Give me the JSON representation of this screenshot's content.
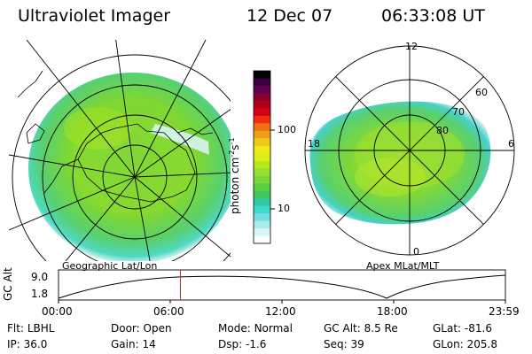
{
  "header": {
    "title": "Ultraviolet Imager",
    "date": "12 Dec 07",
    "time": "06:33:08 UT"
  },
  "left_panel": {
    "caption": "Geographic Lat/Lon"
  },
  "right_panel": {
    "caption": "Apex  MLat/MLT",
    "mlt_labels": [
      "12",
      "18",
      "6",
      "0"
    ],
    "lat_labels": [
      "60",
      "70",
      "80"
    ]
  },
  "colorbar": {
    "unit_label": "photon cm",
    "unit_sup1": "-2",
    "unit_mid": "s",
    "unit_sup2": "-1",
    "tick_100": "100",
    "tick_10": "10",
    "colors": [
      "#000000",
      "#3a0040",
      "#600050",
      "#8a0030",
      "#b00018",
      "#d80018",
      "#f03010",
      "#f07018",
      "#f0a018",
      "#f0c818",
      "#f0e818",
      "#d8f018",
      "#b8e818",
      "#98e030",
      "#78d838",
      "#58d040",
      "#40c860",
      "#30c8a0",
      "#40d8c8",
      "#70e0e0",
      "#a8ecec",
      "#d8f4f4",
      "#ffffff"
    ]
  },
  "altitude_plot": {
    "ylabel": "GC Alt",
    "y_ticks": [
      "9.0",
      "1.8"
    ],
    "x_ticks": [
      "00:00",
      "06:00",
      "12:00",
      "18:00",
      "23:59"
    ],
    "current_time_hours": 6.55
  },
  "status": {
    "row1": [
      {
        "label": "Flt:",
        "value": "LBHL"
      },
      {
        "label": "Door:",
        "value": "Open"
      },
      {
        "label": "Mode:",
        "value": "Normal"
      },
      {
        "label": "GC Alt:",
        "value": "8.5 Re"
      },
      {
        "label": "GLat:",
        "value": "-81.6"
      }
    ],
    "row2": [
      {
        "label": "IP:",
        "value": "36.0"
      },
      {
        "label": "Gain:",
        "value": "14"
      },
      {
        "label": "Dsp:",
        "value": "-1.6"
      },
      {
        "label": "Seq:",
        "value": "39"
      },
      {
        "label": "GLon:",
        "value": "205.8"
      }
    ]
  }
}
